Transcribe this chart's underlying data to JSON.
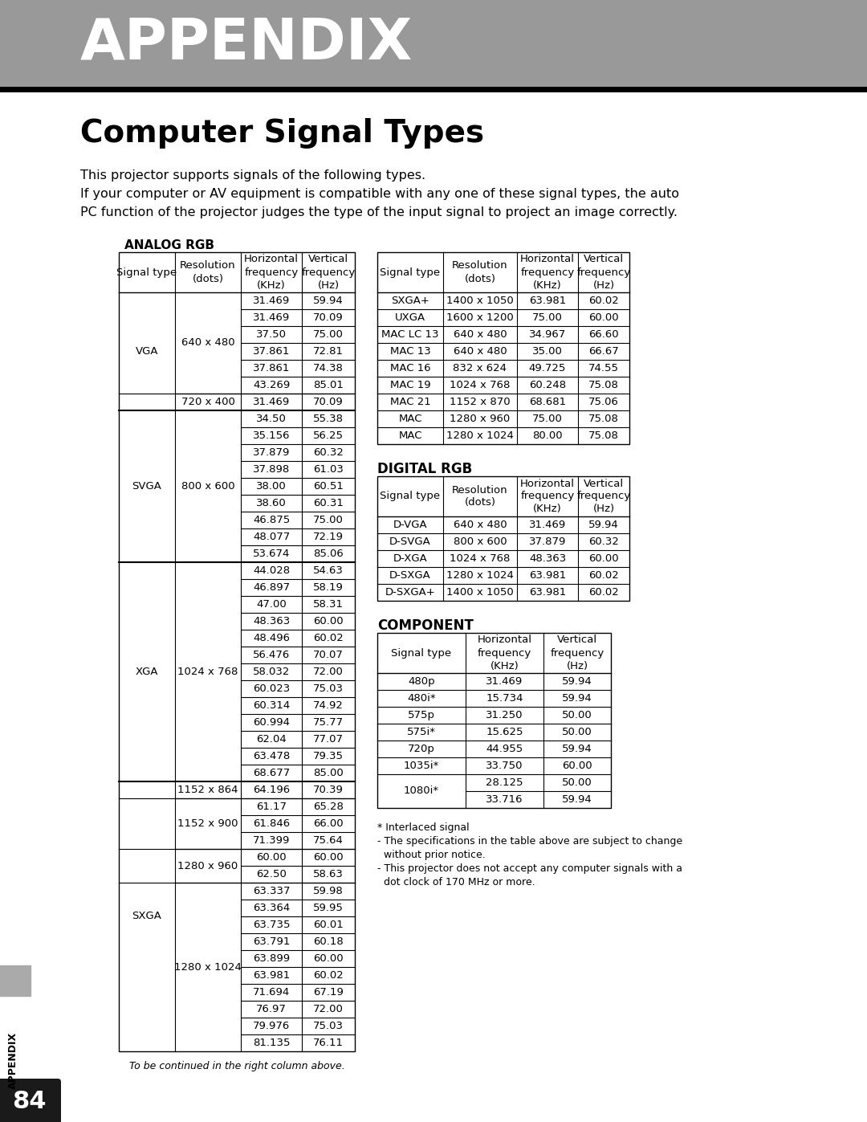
{
  "page_bg": "#ffffff",
  "header_bg": "#999999",
  "header_text": "APPENDIX",
  "header_text_color": "#ffffff",
  "title": "Computer Signal Types",
  "intro_lines": [
    "This projector supports signals of the following types.",
    "If your computer or AV equipment is compatible with any one of these signal types, the auto",
    "PC function of the projector judges the type of the input signal to project an image correctly."
  ],
  "analog_rgb_label": "ANALOG RGB",
  "digital_rgb_label": "DIGITAL RGB",
  "component_label": "COMPONENT",
  "left_table_headers": [
    "Signal type",
    "Resolution\n(dots)",
    "Horizontal\nfrequency\n(KHz)",
    "Vertical\nfrequency\n(Hz)"
  ],
  "right_table_headers": [
    "Signal type",
    "Resolution\n(dots)",
    "Horizontal\nfrequency\n(KHz)",
    "Vertical\nfrequency\n(Hz)"
  ],
  "analog_left_rows": [
    [
      "VGA",
      "640 x 480",
      "31.469",
      "59.94"
    ],
    [
      "VGA",
      "640 x 480",
      "31.469",
      "70.09"
    ],
    [
      "VGA",
      "640 x 480",
      "37.50",
      "75.00"
    ],
    [
      "VGA",
      "640 x 480",
      "37.861",
      "72.81"
    ],
    [
      "VGA",
      "640 x 480",
      "37.861",
      "74.38"
    ],
    [
      "VGA",
      "640 x 480",
      "43.269",
      "85.01"
    ],
    [
      "VGA",
      "720 x 400",
      "31.469",
      "70.09"
    ],
    [
      "SVGA",
      "800 x 600",
      "34.50",
      "55.38"
    ],
    [
      "SVGA",
      "800 x 600",
      "35.156",
      "56.25"
    ],
    [
      "SVGA",
      "800 x 600",
      "37.879",
      "60.32"
    ],
    [
      "SVGA",
      "800 x 600",
      "37.898",
      "61.03"
    ],
    [
      "SVGA",
      "800 x 600",
      "38.00",
      "60.51"
    ],
    [
      "SVGA",
      "800 x 600",
      "38.60",
      "60.31"
    ],
    [
      "SVGA",
      "800 x 600",
      "46.875",
      "75.00"
    ],
    [
      "SVGA",
      "800 x 600",
      "48.077",
      "72.19"
    ],
    [
      "SVGA",
      "800 x 600",
      "53.674",
      "85.06"
    ],
    [
      "XGA",
      "1024 x 768",
      "44.028",
      "54.63"
    ],
    [
      "XGA",
      "1024 x 768",
      "46.897",
      "58.19"
    ],
    [
      "XGA",
      "1024 x 768",
      "47.00",
      "58.31"
    ],
    [
      "XGA",
      "1024 x 768",
      "48.363",
      "60.00"
    ],
    [
      "XGA",
      "1024 x 768",
      "48.496",
      "60.02"
    ],
    [
      "XGA",
      "1024 x 768",
      "56.476",
      "70.07"
    ],
    [
      "XGA",
      "1024 x 768",
      "58.032",
      "72.00"
    ],
    [
      "XGA",
      "1024 x 768",
      "60.023",
      "75.03"
    ],
    [
      "XGA",
      "1024 x 768",
      "60.314",
      "74.92"
    ],
    [
      "XGA",
      "1024 x 768",
      "60.994",
      "75.77"
    ],
    [
      "XGA",
      "1024 x 768",
      "62.04",
      "77.07"
    ],
    [
      "XGA",
      "1024 x 768",
      "63.478",
      "79.35"
    ],
    [
      "XGA",
      "1024 x 768",
      "68.677",
      "85.00"
    ],
    [
      "SXGA",
      "1152 x 864",
      "64.196",
      "70.39"
    ],
    [
      "SXGA",
      "1152 x 900",
      "61.17",
      "65.28"
    ],
    [
      "SXGA",
      "1152 x 900",
      "61.846",
      "66.00"
    ],
    [
      "SXGA",
      "1152 x 900",
      "71.399",
      "75.64"
    ],
    [
      "SXGA",
      "1280 x 960",
      "60.00",
      "60.00"
    ],
    [
      "SXGA",
      "1280 x 960",
      "62.50",
      "58.63"
    ],
    [
      "SXGA",
      "1280 x 1024",
      "63.337",
      "59.98"
    ],
    [
      "SXGA",
      "1280 x 1024",
      "63.364",
      "59.95"
    ],
    [
      "SXGA",
      "1280 x 1024",
      "63.735",
      "60.01"
    ],
    [
      "SXGA",
      "1280 x 1024",
      "63.791",
      "60.18"
    ],
    [
      "SXGA",
      "1280 x 1024",
      "63.899",
      "60.00"
    ],
    [
      "SXGA",
      "1280 x 1024",
      "63.981",
      "60.02"
    ],
    [
      "SXGA",
      "1280 x 1024",
      "71.694",
      "67.19"
    ],
    [
      "SXGA",
      "1280 x 1024",
      "76.97",
      "72.00"
    ],
    [
      "SXGA",
      "1280 x 1024",
      "79.976",
      "75.03"
    ],
    [
      "SXGA",
      "1280 x 1024",
      "81.135",
      "76.11"
    ]
  ],
  "analog_right_rows": [
    [
      "SXGA+",
      "1400 x 1050",
      "63.981",
      "60.02"
    ],
    [
      "UXGA",
      "1600 x 1200",
      "75.00",
      "60.00"
    ],
    [
      "MAC LC 13",
      "640 x 480",
      "34.967",
      "66.60"
    ],
    [
      "MAC 13",
      "640 x 480",
      "35.00",
      "66.67"
    ],
    [
      "MAC 16",
      "832 x 624",
      "49.725",
      "74.55"
    ],
    [
      "MAC 19",
      "1024 x 768",
      "60.248",
      "75.08"
    ],
    [
      "MAC 21",
      "1152 x 870",
      "68.681",
      "75.06"
    ],
    [
      "MAC",
      "1280 x 960",
      "75.00",
      "75.08"
    ],
    [
      "MAC",
      "1280 x 1024",
      "80.00",
      "75.08"
    ]
  ],
  "digital_rgb_rows": [
    [
      "D-VGA",
      "640 x 480",
      "31.469",
      "59.94"
    ],
    [
      "D-SVGA",
      "800 x 600",
      "37.879",
      "60.32"
    ],
    [
      "D-XGA",
      "1024 x 768",
      "48.363",
      "60.00"
    ],
    [
      "D-SXGA",
      "1280 x 1024",
      "63.981",
      "60.02"
    ],
    [
      "D-SXGA+",
      "1400 x 1050",
      "63.981",
      "60.02"
    ]
  ],
  "component_headers": [
    "Signal type",
    "Horizontal\nfrequency\n(KHz)",
    "Vertical\nfrequency\n(Hz)"
  ],
  "component_rows": [
    [
      "480p",
      "31.469",
      "59.94"
    ],
    [
      "480i*",
      "15.734",
      "59.94"
    ],
    [
      "575p",
      "31.250",
      "50.00"
    ],
    [
      "575i*",
      "15.625",
      "50.00"
    ],
    [
      "720p",
      "44.955",
      "59.94"
    ],
    [
      "1035i*",
      "33.750",
      "60.00"
    ],
    [
      "1080i*",
      "28.125",
      "50.00"
    ],
    [
      "1080i*",
      "33.716",
      "59.94"
    ]
  ],
  "footnotes": [
    "* Interlaced signal",
    "- The specifications in the table above are subject to change",
    "  without prior notice.",
    "- This projector does not accept any computer signals with a",
    "  dot clock of 170 MHz or more."
  ],
  "continued_note": "To be continued in the right column above.",
  "page_number": "84",
  "sidebar_label": "APPENDIX"
}
